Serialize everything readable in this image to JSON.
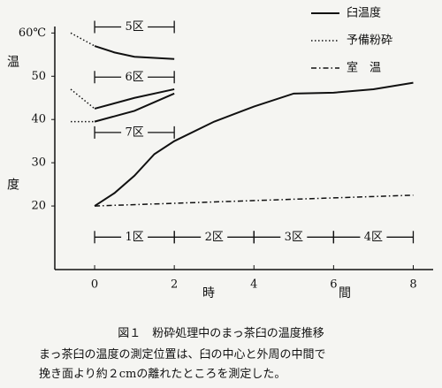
{
  "chart_data": {
    "type": "line",
    "ylabel": "温度",
    "xlabel": "時間",
    "xlim": [
      -1,
      8.5
    ],
    "ylim": [
      5.3,
      61.5
    ],
    "xticks": [
      0,
      2,
      4,
      6,
      8
    ],
    "yticks": [
      20,
      30,
      40,
      50,
      {
        "value": 60,
        "label": "60℃"
      }
    ],
    "series": [
      {
        "name": "臼温度",
        "color": "#111111",
        "style": "solid",
        "x": [
          0,
          0.5,
          1,
          1.5,
          2,
          3,
          4,
          5,
          6,
          7,
          8,
          null,
          0,
          0.5,
          1,
          2,
          null,
          0,
          1,
          2,
          null,
          0,
          1,
          2
        ],
        "values": [
          20,
          23,
          27,
          32,
          35,
          39.5,
          43,
          46,
          46.2,
          47,
          48.5,
          null,
          57,
          55.5,
          54.5,
          54,
          null,
          42.5,
          45,
          47,
          null,
          39.5,
          42,
          46
        ]
      },
      {
        "name": "予備粉砕",
        "color": "#111111",
        "style": "dotted",
        "x": [
          -0.6,
          0,
          null,
          -0.6,
          0,
          null,
          -0.6,
          0
        ],
        "values": [
          60,
          57,
          null,
          47,
          42.5,
          null,
          39.5,
          39.5
        ]
      },
      {
        "name": "室　温",
        "color": "#111111",
        "style": "dashdot",
        "x": [
          0,
          8
        ],
        "values": [
          20,
          22.5
        ]
      }
    ],
    "zones": [
      {
        "label": "5区",
        "x": [
          0,
          2
        ],
        "y": 61.4
      },
      {
        "label": "6区",
        "x": [
          0,
          2
        ],
        "y": 49.8
      },
      {
        "label": "7区",
        "x": [
          0,
          2
        ],
        "y": 37
      },
      {
        "label": "1区",
        "x": [
          0,
          2
        ],
        "y": 12.8
      },
      {
        "label": "2区",
        "x": [
          2,
          4
        ],
        "y": 12.8
      },
      {
        "label": "3区",
        "x": [
          4,
          6
        ],
        "y": 12.8
      },
      {
        "label": "4区",
        "x": [
          6,
          8
        ],
        "y": 12.8
      }
    ],
    "caption": "図１　粉砕処理中のまっ茶臼の温度推移",
    "notes": [
      "まっ茶臼の温度の測定位置は、臼の中心と外周の中間で",
      "挽き面より約２cmの離れたところを測定した。"
    ]
  }
}
